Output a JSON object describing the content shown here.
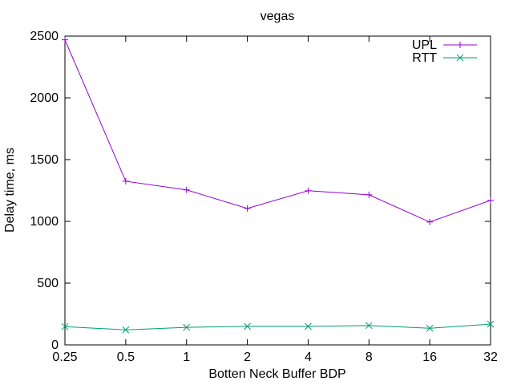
{
  "chart_data": {
    "type": "line",
    "title": "vegas",
    "xlabel": "Botten Neck Buffer BDP",
    "ylabel": "Delay time, ms",
    "categories": [
      "0.25",
      "0.5",
      "1",
      "2",
      "4",
      "8",
      "16",
      "32"
    ],
    "ylim": [
      0,
      2500
    ],
    "yticks": [
      0,
      500,
      1000,
      1500,
      2000,
      2500
    ],
    "grid": false,
    "legend_position": "top-right",
    "series": [
      {
        "name": "UPL",
        "color": "#9400d3",
        "marker": "plus",
        "values": [
          2470,
          1325,
          1255,
          1105,
          1248,
          1215,
          995,
          1170
        ]
      },
      {
        "name": "RTT",
        "color": "#009e73",
        "marker": "cross",
        "values": [
          148,
          122,
          142,
          150,
          150,
          157,
          135,
          168
        ]
      }
    ]
  }
}
